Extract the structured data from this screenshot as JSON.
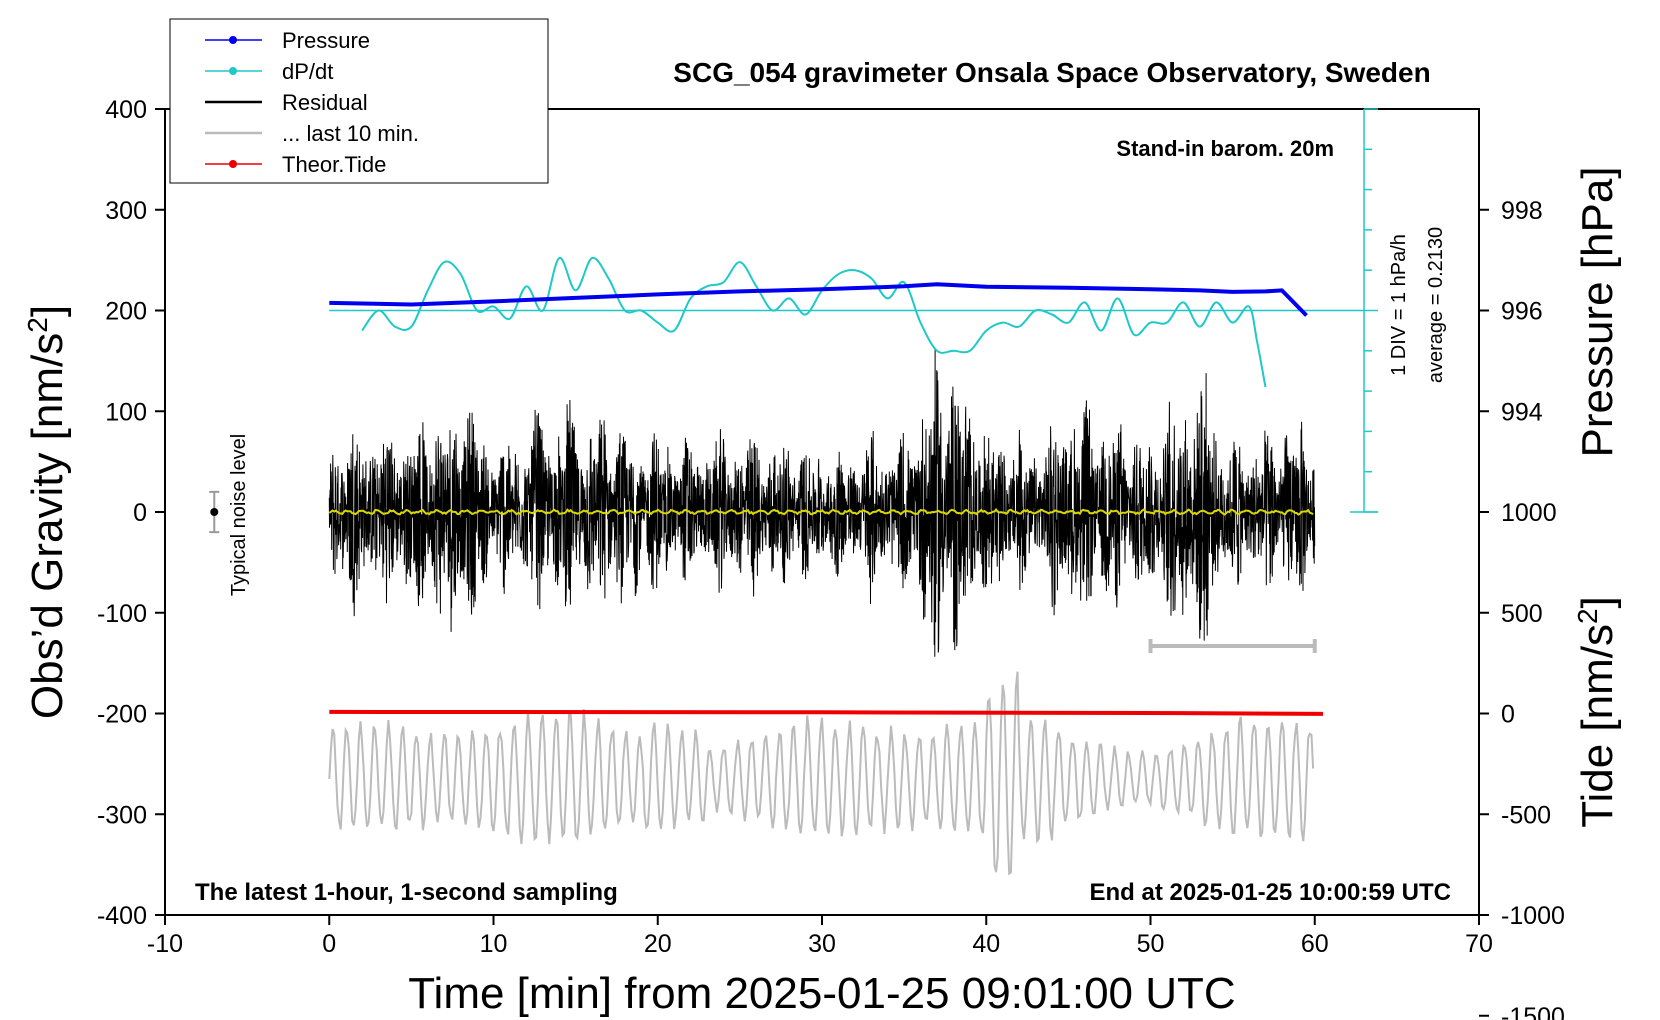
{
  "chart_data": {
    "type": "line",
    "title": "SCG_054 gravimeter Onsala Space Observatory, Sweden",
    "subtitle_left": "The latest 1-hour, 1-second sampling",
    "subtitle_right": "End at 2025-01-25 10:00:59 UTC",
    "barometer_note": "Stand-in barom. 20m",
    "noise_label": "Typical noise level",
    "dpdt_scale_label": "1 DIV = 1 hPa/h",
    "dpdt_average_label": "average = 0.2130",
    "xlabel": "Time [min] from 2025-01-25 09:01:00 UTC",
    "ylabel_left": "Obs’d Gravity [nm/s",
    "ylabel_left_sup": "2",
    "ylabel_left_end": "]",
    "ylabel_right_pressure": "Pressure [hPa]",
    "ylabel_right_tide": "Tide [nm/s",
    "ylabel_right_tide_sup": "2",
    "ylabel_right_tide_end": "]",
    "xlim": [
      -10,
      70
    ],
    "ylim": [
      -400,
      400
    ],
    "x_ticks": [
      "-10",
      "0",
      "10",
      "20",
      "30",
      "40",
      "50",
      "60",
      "70"
    ],
    "y_ticks": [
      "400",
      "300",
      "200",
      "100",
      "0",
      "-100",
      "-200",
      "-300",
      "-400"
    ],
    "pressure_ticks": [
      "998",
      "996",
      "994"
    ],
    "tide_ticks": [
      "1000",
      "500",
      "0",
      "-500",
      "-1000",
      "-1500"
    ],
    "legend": [
      {
        "label": "Pressure",
        "color": "#0000ee",
        "marker": true
      },
      {
        "label": "dP/dt",
        "color": "#20c8c8",
        "marker": true
      },
      {
        "label": "Residual",
        "color": "#000000",
        "marker": false
      },
      {
        "label": "... last 10 min.",
        "color": "#bbbbbb",
        "marker": false
      },
      {
        "label": "Theor.Tide",
        "color": "#ee0000",
        "marker": true
      }
    ],
    "series": [
      {
        "name": "Pressure",
        "unit": "hPa",
        "x": [
          0,
          5,
          10,
          15,
          20,
          25,
          30,
          35,
          37,
          40,
          45,
          50,
          53,
          55,
          57,
          58,
          59.5
        ],
        "values": [
          996.15,
          996.12,
          996.18,
          996.25,
          996.32,
          996.38,
          996.42,
          996.48,
          996.52,
          996.47,
          996.45,
          996.42,
          996.4,
          996.37,
          996.38,
          996.4,
          995.9
        ]
      },
      {
        "name": "dP/dt",
        "unit": "hPa/h (1 DIV = 1 hPa/h)",
        "x": [
          2,
          3,
          4,
          5,
          6,
          7,
          8,
          9,
          10,
          11,
          12,
          13,
          14,
          15,
          16,
          17,
          18,
          19,
          20,
          21,
          22,
          23,
          24,
          25,
          26,
          27,
          28,
          29,
          30,
          31,
          32,
          33,
          34,
          35,
          36,
          37,
          38,
          39,
          40,
          41,
          42,
          43,
          44,
          45,
          46,
          47,
          48,
          49,
          50,
          51,
          52,
          53,
          54,
          55,
          56,
          56.5,
          57
        ],
        "values": [
          -0.5,
          0.0,
          -0.4,
          -0.4,
          0.5,
          1.2,
          0.9,
          0.0,
          0.1,
          -0.2,
          0.6,
          0.0,
          1.3,
          0.5,
          1.3,
          0.8,
          0.0,
          0.0,
          -0.3,
          -0.5,
          0.3,
          0.6,
          0.7,
          1.2,
          0.6,
          0.0,
          0.3,
          -0.1,
          0.5,
          0.9,
          1.0,
          0.8,
          0.3,
          0.7,
          -0.3,
          -1.0,
          -1.0,
          -1.0,
          -0.5,
          -0.3,
          -0.4,
          0.0,
          -0.1,
          -0.3,
          0.2,
          -0.5,
          0.3,
          -0.6,
          -0.3,
          -0.3,
          0.2,
          -0.4,
          0.2,
          -0.3,
          0.1,
          -0.8,
          -1.9
        ]
      },
      {
        "name": "Residual",
        "unit": "nm/s2",
        "envelope_x": [
          0,
          2,
          5,
          8,
          10,
          13,
          15,
          18,
          20,
          23,
          25,
          28,
          30,
          33,
          35,
          37,
          38,
          40,
          43,
          45,
          48,
          50,
          53,
          55,
          58,
          60
        ],
        "envelope_amplitude": [
          80,
          90,
          85,
          120,
          70,
          95,
          100,
          85,
          75,
          70,
          80,
          70,
          60,
          75,
          70,
          160,
          145,
          85,
          70,
          110,
          90,
          80,
          140,
          70,
          90,
          80
        ]
      },
      {
        "name": "Residual smoothed",
        "unit": "nm/s2",
        "x": [
          0,
          60
        ],
        "values": [
          0,
          0
        ]
      },
      {
        "name": "... last 10 min.",
        "unit": "nm/s2",
        "x_range": [
          0,
          60
        ],
        "center": -265,
        "amplitude_range": [
          30,
          80
        ]
      },
      {
        "name": "Theor.Tide",
        "unit": "nm/s2 (tide axis)",
        "x": [
          0,
          30,
          52,
          60.5
        ],
        "values": [
          8,
          6,
          2,
          -2
        ]
      }
    ],
    "noise_bar": {
      "x": -7,
      "center": 0,
      "half_range": 20
    },
    "window_bar": {
      "x_start": 50,
      "x_end": 60,
      "value": -133
    }
  }
}
